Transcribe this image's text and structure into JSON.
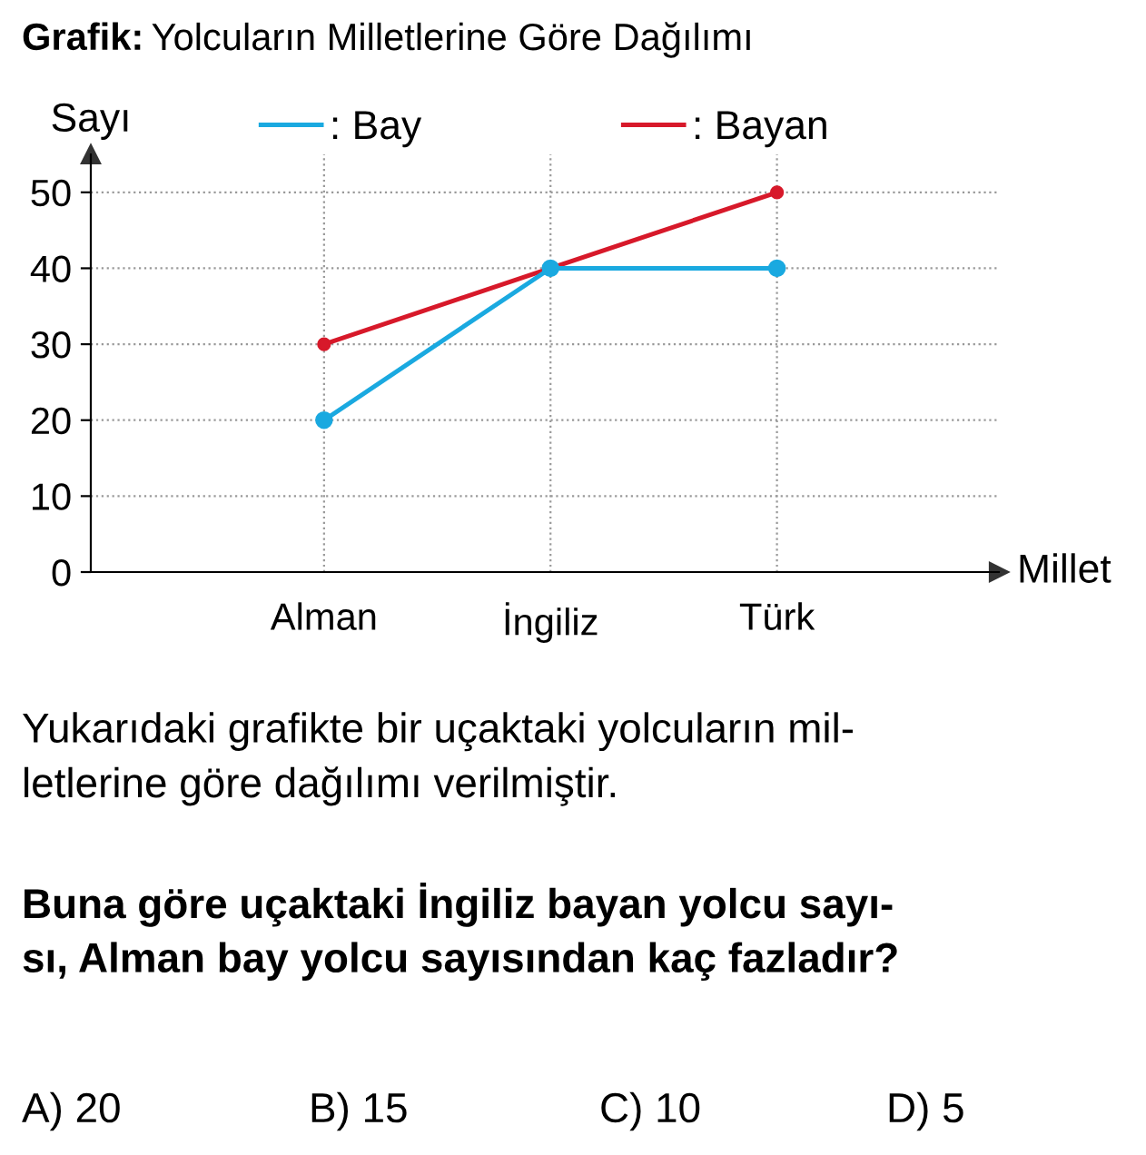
{
  "chart_data": {
    "type": "line",
    "title": "Grafik: Yolcuların Milletlerine Göre Dağılımı",
    "xlabel": "Millet",
    "ylabel": "Sayı",
    "categories": [
      "Alman",
      "İngiliz",
      "Türk"
    ],
    "series": [
      {
        "name": ": Bay",
        "color": "#1aa9e0",
        "values": [
          20,
          40,
          40
        ]
      },
      {
        "name": ": Bayan",
        "color": "#d7192a",
        "values": [
          30,
          40,
          50
        ]
      }
    ],
    "ylim": [
      0,
      55
    ],
    "yticks": [
      0,
      10,
      20,
      30,
      40,
      50
    ],
    "grid": true,
    "legend": "top",
    "marker": "circle",
    "line_style": "solid",
    "annotations": [
      "Yukarıdaki grafikte bir uçaktaki yolcuların mil-\nletlerine göre dağılımı verilmiştir.",
      "Buna göre uçaktaki İngiliz bayan yolcu sayı-\nsı, Alman bay yolcu sayısından kaç fazladır?",
      "A) 20",
      "B) 15",
      "C) 10",
      "D) 5"
    ]
  }
}
